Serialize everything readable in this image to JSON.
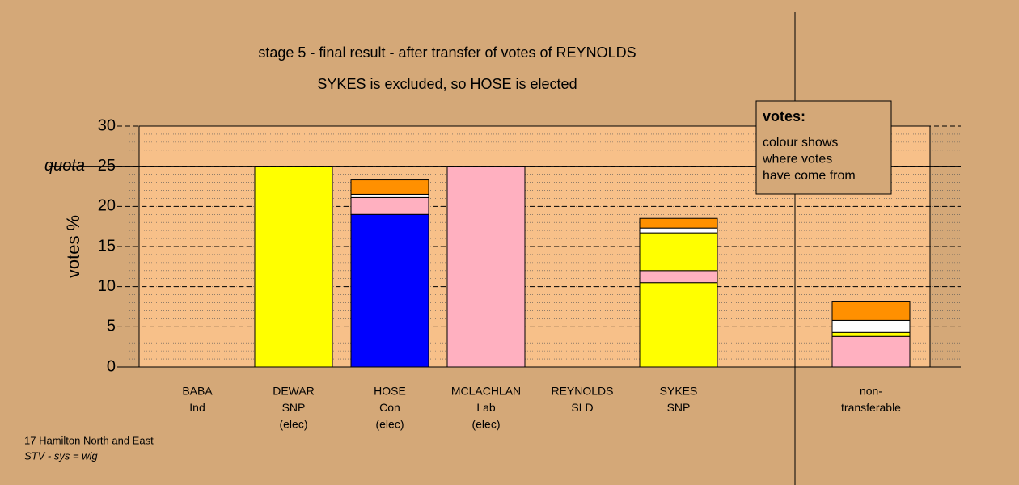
{
  "chart_data": {
    "type": "stacked_bar",
    "title": "stage 5 - final result - after transfer of votes of REYNOLDS",
    "subtitle": "SYKES is excluded, so HOSE is elected",
    "y_label": "votes %",
    "quota_label": "quota",
    "quota": 25,
    "categories": [
      [
        "BABA",
        "Ind"
      ],
      [
        "DEWAR",
        "SNP",
        "(elec)"
      ],
      [
        "HOSE",
        "Con",
        "(elec)"
      ],
      [
        "MCLACHLAN",
        "Lab",
        "(elec)"
      ],
      [
        "REYNOLDS",
        "SLD"
      ],
      [
        "SYKES",
        "SNP"
      ],
      [
        "non-",
        "transferable"
      ]
    ],
    "series": [
      {
        "color": "#ffff00",
        "values": [
          0,
          25,
          0,
          0,
          0,
          10.5,
          0
        ]
      },
      {
        "color": "#0000ff",
        "values": [
          0,
          0,
          19,
          0,
          0,
          0,
          0
        ]
      },
      {
        "color": "#ffb0c0",
        "values": [
          0,
          0,
          2.1,
          25,
          0,
          1.5,
          3.8
        ]
      },
      {
        "color": "#ffff00",
        "values": [
          0,
          0,
          0,
          0,
          0,
          4.7,
          0.5
        ]
      },
      {
        "color": "#ffffff",
        "values": [
          0,
          0,
          0.4,
          0,
          0,
          0.6,
          1.5
        ]
      },
      {
        "color": "#ff9000",
        "values": [
          0,
          0,
          1.8,
          0,
          0,
          1.2,
          2.4
        ]
      }
    ],
    "ylim": [
      0,
      30
    ],
    "yticks": [
      0,
      5,
      10,
      15,
      20,
      25,
      30
    ],
    "legend": {
      "title": "votes:",
      "lines": [
        "colour shows",
        "where votes",
        "have come from"
      ]
    },
    "footer": [
      "17 Hamilton North and East",
      "STV - sys = wig"
    ]
  }
}
